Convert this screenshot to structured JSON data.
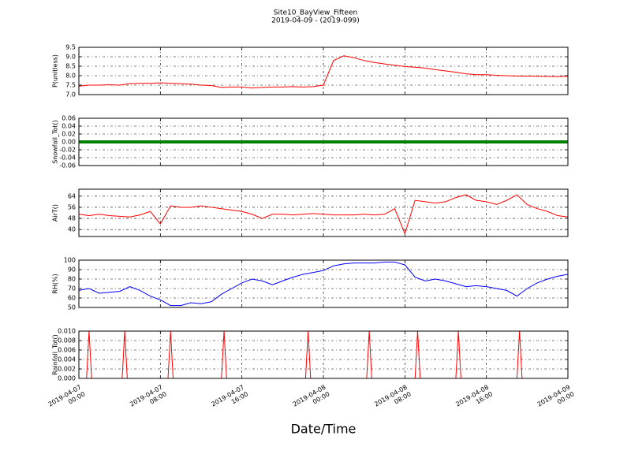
{
  "title": "Site10_BayView_Fifteen",
  "subtitle": "2019-04-09 - (2019-099)",
  "xlabel": "Date/Time",
  "xlim": [
    "2019-04-07 00:00",
    "2019-04-09 00:00"
  ],
  "xticks": [
    {
      "value": "2019-04-07 00:00",
      "label": "2019-04-07\n00:00"
    },
    {
      "value": "2019-04-07 08:00",
      "label": "2019-04-07\n08:00"
    },
    {
      "value": "2019-04-07 16:00",
      "label": "2019-04-07\n16:00"
    },
    {
      "value": "2019-04-08 00:00",
      "label": "2019-04-08\n00:00"
    },
    {
      "value": "2019-04-08 08:00",
      "label": "2019-04-08\n08:00"
    },
    {
      "value": "2019-04-08 16:00",
      "label": "2019-04-08\n16:00"
    },
    {
      "value": "2019-04-09 00:00",
      "label": "2019-04-09\n00:00"
    }
  ],
  "chart_data": [
    {
      "type": "line",
      "ylabel": "P(unitless)",
      "color": "#ff0000",
      "grid": true,
      "ylim": [
        7.0,
        9.5
      ],
      "yticks": [
        {
          "value": 7,
          "label": "7.0"
        },
        7.5,
        {
          "value": 8,
          "label": "8.0"
        },
        8.5,
        {
          "value": 9,
          "label": "9.0"
        },
        9.5
      ],
      "x": [
        "2019-04-07 00:00",
        "2019-04-07 01:00",
        "2019-04-07 02:00",
        "2019-04-07 03:00",
        "2019-04-07 04:00",
        "2019-04-07 05:00",
        "2019-04-07 06:00",
        "2019-04-07 07:00",
        "2019-04-07 08:00",
        "2019-04-07 09:00",
        "2019-04-07 10:00",
        "2019-04-07 11:00",
        "2019-04-07 12:00",
        "2019-04-07 13:00",
        "2019-04-07 14:00",
        "2019-04-07 15:00",
        "2019-04-07 16:00",
        "2019-04-07 17:00",
        "2019-04-07 18:00",
        "2019-04-07 19:00",
        "2019-04-07 20:00",
        "2019-04-07 21:00",
        "2019-04-07 22:00",
        "2019-04-07 23:00",
        "2019-04-08 00:00",
        "2019-04-08 01:00",
        "2019-04-08 02:00",
        "2019-04-08 03:00",
        "2019-04-08 04:00",
        "2019-04-08 05:00",
        "2019-04-08 06:00",
        "2019-04-08 07:00",
        "2019-04-08 08:00",
        "2019-04-08 09:00",
        "2019-04-08 10:00",
        "2019-04-08 11:00",
        "2019-04-08 12:00",
        "2019-04-08 13:00",
        "2019-04-08 14:00",
        "2019-04-08 15:00",
        "2019-04-08 16:00",
        "2019-04-08 17:00",
        "2019-04-08 18:00",
        "2019-04-08 19:00",
        "2019-04-08 20:00",
        "2019-04-08 21:00",
        "2019-04-08 22:00",
        "2019-04-08 23:00",
        "2019-04-09 00:00"
      ],
      "values": [
        7.45,
        7.5,
        7.5,
        7.52,
        7.5,
        7.58,
        7.6,
        7.6,
        7.62,
        7.6,
        7.58,
        7.55,
        7.5,
        7.48,
        7.38,
        7.4,
        7.4,
        7.35,
        7.38,
        7.4,
        7.4,
        7.42,
        7.4,
        7.42,
        7.5,
        8.8,
        9.05,
        8.95,
        8.8,
        8.7,
        8.62,
        8.55,
        8.48,
        8.45,
        8.4,
        8.32,
        8.25,
        8.18,
        8.1,
        8.05,
        8.05,
        8.02,
        8.0,
        7.98,
        7.98,
        7.97,
        7.96,
        7.95,
        7.97
      ]
    },
    {
      "type": "line",
      "ylabel": "Snowfall_Tot()",
      "color": "#008000",
      "grid": true,
      "ylim": [
        -0.06,
        0.06
      ],
      "yticks": [
        -0.06,
        -0.04,
        -0.02,
        {
          "value": 0,
          "label": "0.00"
        },
        0.02,
        0.04,
        0.06
      ],
      "x": [
        "2019-04-07 00:00",
        "2019-04-07 01:00",
        "2019-04-07 02:00",
        "2019-04-07 03:00",
        "2019-04-07 04:00",
        "2019-04-07 05:00",
        "2019-04-07 06:00",
        "2019-04-07 07:00",
        "2019-04-07 08:00",
        "2019-04-07 09:00",
        "2019-04-07 10:00",
        "2019-04-07 11:00",
        "2019-04-07 12:00",
        "2019-04-07 13:00",
        "2019-04-07 14:00",
        "2019-04-07 15:00",
        "2019-04-07 16:00",
        "2019-04-07 17:00",
        "2019-04-07 18:00",
        "2019-04-07 19:00",
        "2019-04-07 20:00",
        "2019-04-07 21:00",
        "2019-04-07 22:00",
        "2019-04-07 23:00",
        "2019-04-08 00:00",
        "2019-04-08 01:00",
        "2019-04-08 02:00",
        "2019-04-08 03:00",
        "2019-04-08 04:00",
        "2019-04-08 05:00",
        "2019-04-08 06:00",
        "2019-04-08 07:00",
        "2019-04-08 08:00",
        "2019-04-08 09:00",
        "2019-04-08 10:00",
        "2019-04-08 11:00",
        "2019-04-08 12:00",
        "2019-04-08 13:00",
        "2019-04-08 14:00",
        "2019-04-08 15:00",
        "2019-04-08 16:00",
        "2019-04-08 17:00",
        "2019-04-08 18:00",
        "2019-04-08 19:00",
        "2019-04-08 20:00",
        "2019-04-08 21:00",
        "2019-04-08 22:00",
        "2019-04-08 23:00",
        "2019-04-09 00:00"
      ],
      "values": [
        0,
        0,
        0,
        0,
        0,
        0,
        0,
        0,
        0,
        0,
        0,
        0,
        0,
        0,
        0,
        0,
        0,
        0,
        0,
        0,
        0,
        0,
        0,
        0,
        0,
        0,
        0,
        0,
        0,
        0,
        0,
        0,
        0,
        0,
        0,
        0,
        0,
        0,
        0,
        0,
        0,
        0,
        0,
        0,
        0,
        0,
        0,
        0,
        0
      ]
    },
    {
      "type": "line",
      "ylabel": "AirT()",
      "color": "#ff0000",
      "grid": true,
      "ylim": [
        35,
        69
      ],
      "yticks": [
        40,
        48,
        56,
        64
      ],
      "x": [
        "2019-04-07 00:00",
        "2019-04-07 01:00",
        "2019-04-07 02:00",
        "2019-04-07 03:00",
        "2019-04-07 04:00",
        "2019-04-07 05:00",
        "2019-04-07 06:00",
        "2019-04-07 07:00",
        "2019-04-07 08:00",
        "2019-04-07 09:00",
        "2019-04-07 10:00",
        "2019-04-07 11:00",
        "2019-04-07 12:00",
        "2019-04-07 13:00",
        "2019-04-07 14:00",
        "2019-04-07 15:00",
        "2019-04-07 16:00",
        "2019-04-07 17:00",
        "2019-04-07 18:00",
        "2019-04-07 19:00",
        "2019-04-07 20:00",
        "2019-04-07 21:00",
        "2019-04-07 22:00",
        "2019-04-07 23:00",
        "2019-04-08 00:00",
        "2019-04-08 01:00",
        "2019-04-08 02:00",
        "2019-04-08 03:00",
        "2019-04-08 04:00",
        "2019-04-08 05:00",
        "2019-04-08 06:00",
        "2019-04-08 07:00",
        "2019-04-08 08:00",
        "2019-04-08 09:00",
        "2019-04-08 10:00",
        "2019-04-08 11:00",
        "2019-04-08 12:00",
        "2019-04-08 13:00",
        "2019-04-08 14:00",
        "2019-04-08 15:00",
        "2019-04-08 16:00",
        "2019-04-08 17:00",
        "2019-04-08 18:00",
        "2019-04-08 19:00",
        "2019-04-08 20:00",
        "2019-04-08 21:00",
        "2019-04-08 22:00",
        "2019-04-08 23:00",
        "2019-04-09 00:00"
      ],
      "values": [
        51,
        50,
        51,
        50,
        49.5,
        49,
        50.5,
        53,
        44,
        57,
        56,
        56,
        57,
        56,
        55,
        54,
        53,
        51,
        48,
        51,
        51,
        50.5,
        51,
        51.5,
        51,
        50.5,
        50.5,
        50.5,
        51,
        50.5,
        51,
        55,
        37,
        61,
        60,
        59,
        60,
        63,
        65,
        61,
        60,
        58,
        61,
        65,
        58,
        55,
        53,
        50,
        49
      ]
    },
    {
      "type": "line",
      "ylabel": "RH(%)",
      "color": "#0000ff",
      "grid": true,
      "ylim": [
        50,
        100
      ],
      "yticks": [
        50,
        60,
        70,
        80,
        90,
        100
      ],
      "x": [
        "2019-04-07 00:00",
        "2019-04-07 01:00",
        "2019-04-07 02:00",
        "2019-04-07 03:00",
        "2019-04-07 04:00",
        "2019-04-07 05:00",
        "2019-04-07 06:00",
        "2019-04-07 07:00",
        "2019-04-07 08:00",
        "2019-04-07 09:00",
        "2019-04-07 10:00",
        "2019-04-07 11:00",
        "2019-04-07 12:00",
        "2019-04-07 13:00",
        "2019-04-07 14:00",
        "2019-04-07 15:00",
        "2019-04-07 16:00",
        "2019-04-07 17:00",
        "2019-04-07 18:00",
        "2019-04-07 19:00",
        "2019-04-07 20:00",
        "2019-04-07 21:00",
        "2019-04-07 22:00",
        "2019-04-07 23:00",
        "2019-04-08 00:00",
        "2019-04-08 01:00",
        "2019-04-08 02:00",
        "2019-04-08 03:00",
        "2019-04-08 04:00",
        "2019-04-08 05:00",
        "2019-04-08 06:00",
        "2019-04-08 07:00",
        "2019-04-08 08:00",
        "2019-04-08 09:00",
        "2019-04-08 10:00",
        "2019-04-08 11:00",
        "2019-04-08 12:00",
        "2019-04-08 13:00",
        "2019-04-08 14:00",
        "2019-04-08 15:00",
        "2019-04-08 16:00",
        "2019-04-08 17:00",
        "2019-04-08 18:00",
        "2019-04-08 19:00",
        "2019-04-08 20:00",
        "2019-04-08 21:00",
        "2019-04-08 22:00",
        "2019-04-08 23:00",
        "2019-04-09 00:00"
      ],
      "values": [
        68,
        70,
        65,
        66,
        67,
        72,
        68,
        62,
        58,
        52,
        52,
        55,
        54,
        56,
        64,
        70,
        76,
        80,
        78,
        74,
        78,
        82,
        85,
        87,
        89,
        94,
        96,
        97,
        97,
        97,
        98,
        98,
        95,
        82,
        78,
        80,
        78,
        75,
        72,
        73,
        72,
        70,
        68,
        62,
        70,
        76,
        80,
        83,
        85
      ]
    },
    {
      "type": "line",
      "ylabel": "Rainfall_Tot()",
      "color": "#ff0000",
      "grid": true,
      "ylim": [
        0,
        0.01
      ],
      "yticks": [
        {
          "value": 0,
          "label": "0.000"
        },
        0.002,
        0.004,
        0.006,
        0.008,
        {
          "value": 0.01,
          "label": "0.010"
        }
      ],
      "x": [
        "2019-04-07 00:00",
        "2019-04-07 00:45",
        "2019-04-07 01:00",
        "2019-04-07 01:15",
        "2019-04-07 04:15",
        "2019-04-07 04:30",
        "2019-04-07 04:45",
        "2019-04-07 08:45",
        "2019-04-07 09:00",
        "2019-04-07 09:15",
        "2019-04-07 14:00",
        "2019-04-07 14:15",
        "2019-04-07 14:30",
        "2019-04-07 22:15",
        "2019-04-07 22:30",
        "2019-04-07 22:45",
        "2019-04-08 04:15",
        "2019-04-08 04:30",
        "2019-04-08 04:45",
        "2019-04-08 09:00",
        "2019-04-08 09:15",
        "2019-04-08 09:30",
        "2019-04-08 13:00",
        "2019-04-08 13:15",
        "2019-04-08 13:30",
        "2019-04-08 19:00",
        "2019-04-08 19:15",
        "2019-04-08 19:30",
        "2019-04-09 00:00"
      ],
      "values": [
        0,
        0,
        0.01,
        0,
        0,
        0.01,
        0,
        0,
        0.01,
        0,
        0,
        0.01,
        0,
        0,
        0.01,
        0,
        0,
        0.01,
        0,
        0,
        0.01,
        0,
        0,
        0.01,
        0,
        0,
        0.01,
        0,
        0
      ]
    }
  ]
}
